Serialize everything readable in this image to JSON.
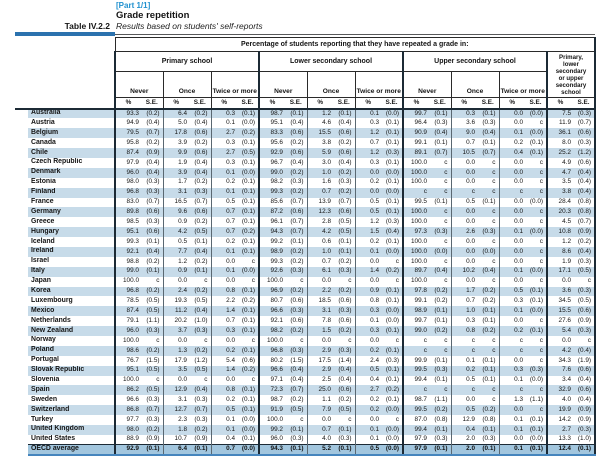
{
  "page": {
    "part_label": "[Part 1/1]",
    "title": "Grade repetition",
    "table_number": "Table IV.2.2",
    "subtitle": "Results based on students' self-reports"
  },
  "table": {
    "row_group_label": "OECD",
    "span_header": "Percentage of students reporting that they have repeated a grade in:",
    "school_levels": [
      "Primary school",
      "Lower secondary school",
      "Upper secondary school"
    ],
    "frequencies": [
      "Never",
      "Once",
      "Twice or more"
    ],
    "combined_column_header": "Primary, lower secondary or upper secondary school",
    "measure_labels": [
      "%",
      "S.E."
    ],
    "missing_code": "c",
    "rows": [
      {
        "name": "Australia",
        "values": [
          "93.3",
          "(0.2)",
          "6.4",
          "(0.2)",
          "0.3",
          "(0.1)",
          "98.7",
          "(0.1)",
          "1.2",
          "(0.1)",
          "0.1",
          "(0.0)",
          "99.7",
          "(0.1)",
          "0.3",
          "(0.1)",
          "0.0",
          "(0.0)",
          "7.5",
          "(0.3)"
        ]
      },
      {
        "name": "Austria",
        "values": [
          "94.9",
          "(0.4)",
          "5.0",
          "(0.4)",
          "0.1",
          "(0.0)",
          "95.1",
          "(0.4)",
          "4.6",
          "(0.4)",
          "0.3",
          "(0.1)",
          "96.4",
          "(0.3)",
          "3.6",
          "(0.3)",
          "0.0",
          "c",
          "11.9",
          "(0.7)"
        ]
      },
      {
        "name": "Belgium",
        "values": [
          "79.5",
          "(0.7)",
          "17.8",
          "(0.6)",
          "2.7",
          "(0.2)",
          "83.3",
          "(0.6)",
          "15.5",
          "(0.6)",
          "1.2",
          "(0.1)",
          "90.9",
          "(0.4)",
          "9.0",
          "(0.4)",
          "0.1",
          "(0.0)",
          "36.1",
          "(0.6)"
        ]
      },
      {
        "name": "Canada",
        "values": [
          "95.8",
          "(0.2)",
          "3.9",
          "(0.2)",
          "0.3",
          "(0.1)",
          "95.6",
          "(0.2)",
          "3.8",
          "(0.2)",
          "0.7",
          "(0.1)",
          "99.1",
          "(0.1)",
          "0.7",
          "(0.1)",
          "0.2",
          "(0.1)",
          "8.0",
          "(0.3)"
        ]
      },
      {
        "name": "Chile",
        "values": [
          "87.4",
          "(0.9)",
          "9.9",
          "(0.6)",
          "2.7",
          "(0.5)",
          "92.9",
          "(0.6)",
          "5.9",
          "(0.6)",
          "1.2",
          "(0.3)",
          "89.1",
          "(0.7)",
          "10.5",
          "(0.7)",
          "0.4",
          "(0.1)",
          "25.2",
          "(1.2)"
        ]
      },
      {
        "name": "Czech Republic",
        "values": [
          "97.9",
          "(0.4)",
          "1.9",
          "(0.4)",
          "0.3",
          "(0.1)",
          "96.7",
          "(0.4)",
          "3.0",
          "(0.4)",
          "0.3",
          "(0.1)",
          "100.0",
          "c",
          "0.0",
          "c",
          "0.0",
          "c",
          "4.9",
          "(0.6)"
        ]
      },
      {
        "name": "Denmark",
        "values": [
          "96.0",
          "(0.4)",
          "3.9",
          "(0.4)",
          "0.1",
          "(0.0)",
          "99.0",
          "(0.2)",
          "1.0",
          "(0.2)",
          "0.0",
          "(0.0)",
          "100.0",
          "c",
          "0.0",
          "c",
          "0.0",
          "c",
          "4.7",
          "(0.4)"
        ]
      },
      {
        "name": "Estonia",
        "values": [
          "98.0",
          "(0.3)",
          "1.7",
          "(0.2)",
          "0.2",
          "(0.1)",
          "98.2",
          "(0.3)",
          "1.6",
          "(0.3)",
          "0.2",
          "(0.1)",
          "100.0",
          "c",
          "0.0",
          "c",
          "0.0",
          "c",
          "3.5",
          "(0.4)"
        ]
      },
      {
        "name": "Finland",
        "values": [
          "96.8",
          "(0.3)",
          "3.1",
          "(0.3)",
          "0.1",
          "(0.1)",
          "99.3",
          "(0.2)",
          "0.7",
          "(0.2)",
          "0.0",
          "(0.0)",
          "c",
          "c",
          "c",
          "c",
          "c",
          "c",
          "3.8",
          "(0.4)"
        ]
      },
      {
        "name": "France",
        "values": [
          "83.0",
          "(0.7)",
          "16.5",
          "(0.7)",
          "0.5",
          "(0.1)",
          "85.6",
          "(0.7)",
          "13.9",
          "(0.7)",
          "0.5",
          "(0.1)",
          "99.5",
          "(0.1)",
          "0.5",
          "(0.1)",
          "0.0",
          "(0.0)",
          "28.4",
          "(0.8)"
        ]
      },
      {
        "name": "Germany",
        "values": [
          "89.8",
          "(0.6)",
          "9.6",
          "(0.6)",
          "0.7",
          "(0.1)",
          "87.2",
          "(0.6)",
          "12.3",
          "(0.6)",
          "0.5",
          "(0.1)",
          "100.0",
          "c",
          "0.0",
          "c",
          "0.0",
          "c",
          "20.3",
          "(0.8)"
        ]
      },
      {
        "name": "Greece",
        "values": [
          "98.5",
          "(0.3)",
          "0.9",
          "(0.2)",
          "0.7",
          "(0.1)",
          "96.1",
          "(0.7)",
          "2.8",
          "(0.5)",
          "1.2",
          "(0.3)",
          "100.0",
          "c",
          "0.0",
          "c",
          "0.0",
          "c",
          "4.5",
          "(0.7)"
        ]
      },
      {
        "name": "Hungary",
        "values": [
          "95.1",
          "(0.6)",
          "4.2",
          "(0.5)",
          "0.7",
          "(0.2)",
          "94.3",
          "(0.7)",
          "4.2",
          "(0.5)",
          "1.5",
          "(0.4)",
          "97.3",
          "(0.3)",
          "2.6",
          "(0.3)",
          "0.1",
          "(0.0)",
          "10.8",
          "(0.9)"
        ]
      },
      {
        "name": "Iceland",
        "values": [
          "99.3",
          "(0.1)",
          "0.5",
          "(0.1)",
          "0.2",
          "(0.1)",
          "99.2",
          "(0.1)",
          "0.6",
          "(0.1)",
          "0.2",
          "(0.1)",
          "100.0",
          "c",
          "0.0",
          "c",
          "0.0",
          "c",
          "1.2",
          "(0.2)"
        ]
      },
      {
        "name": "Ireland",
        "values": [
          "92.1",
          "(0.4)",
          "7.7",
          "(0.4)",
          "0.1",
          "(0.1)",
          "98.9",
          "(0.2)",
          "1.0",
          "(0.1)",
          "0.1",
          "(0.0)",
          "100.0",
          "(0.0)",
          "0.0",
          "(0.0)",
          "0.0",
          "c",
          "8.6",
          "(0.4)"
        ]
      },
      {
        "name": "Israel",
        "values": [
          "98.8",
          "(0.2)",
          "1.2",
          "(0.2)",
          "0.0",
          "c",
          "99.3",
          "(0.2)",
          "0.7",
          "(0.2)",
          "0.0",
          "c",
          "100.0",
          "c",
          "0.0",
          "c",
          "0.0",
          "c",
          "1.9",
          "(0.3)"
        ]
      },
      {
        "name": "Italy",
        "values": [
          "99.0",
          "(0.1)",
          "0.9",
          "(0.1)",
          "0.1",
          "(0.0)",
          "92.6",
          "(0.3)",
          "6.1",
          "(0.3)",
          "1.4",
          "(0.2)",
          "89.7",
          "(0.4)",
          "10.2",
          "(0.4)",
          "0.1",
          "(0.0)",
          "17.1",
          "(0.5)"
        ]
      },
      {
        "name": "Japan",
        "values": [
          "100.0",
          "c",
          "0.0",
          "c",
          "0.0",
          "c",
          "100.0",
          "c",
          "0.0",
          "c",
          "0.0",
          "c",
          "100.0",
          "c",
          "0.0",
          "c",
          "0.0",
          "c",
          "0.0",
          "c"
        ]
      },
      {
        "name": "Korea",
        "values": [
          "96.8",
          "(0.2)",
          "2.4",
          "(0.2)",
          "0.8",
          "(0.1)",
          "96.9",
          "(0.2)",
          "2.2",
          "(0.2)",
          "0.9",
          "(0.1)",
          "97.8",
          "(0.2)",
          "1.7",
          "(0.2)",
          "0.5",
          "(0.1)",
          "3.6",
          "(0.3)"
        ]
      },
      {
        "name": "Luxembourg",
        "values": [
          "78.5",
          "(0.5)",
          "19.3",
          "(0.5)",
          "2.2",
          "(0.2)",
          "80.7",
          "(0.6)",
          "18.5",
          "(0.6)",
          "0.8",
          "(0.1)",
          "99.1",
          "(0.2)",
          "0.7",
          "(0.2)",
          "0.3",
          "(0.1)",
          "34.5",
          "(0.5)"
        ]
      },
      {
        "name": "Mexico",
        "values": [
          "87.4",
          "(0.5)",
          "11.2",
          "(0.4)",
          "1.4",
          "(0.1)",
          "96.6",
          "(0.3)",
          "3.1",
          "(0.3)",
          "0.3",
          "(0.0)",
          "98.9",
          "(0.1)",
          "1.0",
          "(0.1)",
          "0.1",
          "(0.0)",
          "15.5",
          "(0.6)"
        ]
      },
      {
        "name": "Netherlands",
        "values": [
          "79.1",
          "(1.1)",
          "20.2",
          "(1.0)",
          "0.7",
          "(0.1)",
          "92.1",
          "(0.6)",
          "7.8",
          "(0.6)",
          "0.1",
          "(0.0)",
          "99.7",
          "(0.1)",
          "0.3",
          "(0.1)",
          "0.0",
          "c",
          "27.6",
          "(0.9)"
        ]
      },
      {
        "name": "New Zealand",
        "values": [
          "96.0",
          "(0.3)",
          "3.7",
          "(0.3)",
          "0.3",
          "(0.1)",
          "98.2",
          "(0.2)",
          "1.5",
          "(0.2)",
          "0.3",
          "(0.1)",
          "99.0",
          "(0.2)",
          "0.8",
          "(0.2)",
          "0.2",
          "(0.1)",
          "5.4",
          "(0.3)"
        ]
      },
      {
        "name": "Norway",
        "values": [
          "100.0",
          "c",
          "0.0",
          "c",
          "0.0",
          "c",
          "100.0",
          "c",
          "0.0",
          "c",
          "0.0",
          "c",
          "c",
          "c",
          "c",
          "c",
          "c",
          "c",
          "0.0",
          "c"
        ]
      },
      {
        "name": "Poland",
        "values": [
          "98.6",
          "(0.2)",
          "1.3",
          "(0.2)",
          "0.2",
          "(0.1)",
          "96.8",
          "(0.3)",
          "2.9",
          "(0.3)",
          "0.2",
          "(0.1)",
          "c",
          "c",
          "c",
          "c",
          "c",
          "c",
          "4.2",
          "(0.4)"
        ]
      },
      {
        "name": "Portugal",
        "values": [
          "76.7",
          "(1.5)",
          "17.9",
          "(1.2)",
          "5.4",
          "(0.6)",
          "80.2",
          "(1.5)",
          "17.5",
          "(1.4)",
          "2.4",
          "(0.3)",
          "99.9",
          "(0.1)",
          "0.1",
          "(0.1)",
          "0.0",
          "c",
          "34.3",
          "(1.9)"
        ]
      },
      {
        "name": "Slovak Republic",
        "values": [
          "95.1",
          "(0.5)",
          "3.5",
          "(0.5)",
          "1.4",
          "(0.2)",
          "96.6",
          "(0.4)",
          "2.9",
          "(0.4)",
          "0.5",
          "(0.1)",
          "99.5",
          "(0.3)",
          "0.2",
          "(0.1)",
          "0.3",
          "(0.3)",
          "7.6",
          "(0.6)"
        ]
      },
      {
        "name": "Slovenia",
        "values": [
          "100.0",
          "c",
          "0.0",
          "c",
          "0.0",
          "c",
          "97.1",
          "(0.4)",
          "2.5",
          "(0.4)",
          "0.4",
          "(0.1)",
          "99.4",
          "(0.1)",
          "0.5",
          "(0.1)",
          "0.1",
          "(0.0)",
          "3.4",
          "(0.4)"
        ]
      },
      {
        "name": "Spain",
        "values": [
          "86.2",
          "(0.5)",
          "12.9",
          "(0.4)",
          "0.8",
          "(0.1)",
          "72.3",
          "(0.7)",
          "25.0",
          "(0.6)",
          "2.7",
          "(0.2)",
          "c",
          "c",
          "c",
          "c",
          "c",
          "c",
          "32.9",
          "(0.6)"
        ]
      },
      {
        "name": "Sweden",
        "values": [
          "96.6",
          "(0.3)",
          "3.1",
          "(0.3)",
          "0.2",
          "(0.1)",
          "98.7",
          "(0.2)",
          "1.1",
          "(0.2)",
          "0.2",
          "(0.1)",
          "98.7",
          "(1.1)",
          "0.0",
          "c",
          "1.3",
          "(1.1)",
          "4.0",
          "(0.4)"
        ]
      },
      {
        "name": "Switzerland",
        "values": [
          "86.8",
          "(0.7)",
          "12.7",
          "(0.7)",
          "0.5",
          "(0.1)",
          "91.9",
          "(0.5)",
          "7.9",
          "(0.5)",
          "0.2",
          "(0.0)",
          "99.5",
          "(0.2)",
          "0.5",
          "(0.2)",
          "0.0",
          "c",
          "19.9",
          "(0.9)"
        ]
      },
      {
        "name": "Turkey",
        "values": [
          "97.7",
          "(0.3)",
          "2.3",
          "(0.3)",
          "0.1",
          "(0.0)",
          "100.0",
          "c",
          "0.0",
          "c",
          "0.0",
          "c",
          "87.0",
          "(0.8)",
          "12.9",
          "(0.8)",
          "0.1",
          "(0.1)",
          "14.2",
          "(0.9)"
        ]
      },
      {
        "name": "United Kingdom",
        "values": [
          "98.0",
          "(0.2)",
          "1.8",
          "(0.2)",
          "0.1",
          "(0.0)",
          "99.2",
          "(0.1)",
          "0.7",
          "(0.1)",
          "0.1",
          "(0.0)",
          "99.4",
          "(0.1)",
          "0.4",
          "(0.1)",
          "0.1",
          "(0.1)",
          "2.7",
          "(0.3)"
        ]
      },
      {
        "name": "United States",
        "values": [
          "88.9",
          "(0.9)",
          "10.7",
          "(0.9)",
          "0.4",
          "(0.1)",
          "96.0",
          "(0.3)",
          "4.0",
          "(0.3)",
          "0.1",
          "(0.0)",
          "97.9",
          "(0.3)",
          "2.0",
          "(0.3)",
          "0.0",
          "(0.0)",
          "13.3",
          "(1.0)"
        ]
      }
    ],
    "average_row": {
      "name": "OECD average",
      "values": [
        "92.9",
        "(0.1)",
        "6.4",
        "(0.1)",
        "0.7",
        "(0.0)",
        "94.3",
        "(0.1)",
        "5.2",
        "(0.1)",
        "0.5",
        "(0.0)",
        "97.9",
        "(0.1)",
        "2.0",
        "(0.1)",
        "0.1",
        "(0.1)",
        "12.4",
        "(0.1)"
      ]
    }
  },
  "colors": {
    "band": "#c7dbe9",
    "average_row": "#a2c6de",
    "accent_blue": "#2191cf",
    "rule_blue": "#2b72ae",
    "label_blue": "#2b7cb6"
  }
}
